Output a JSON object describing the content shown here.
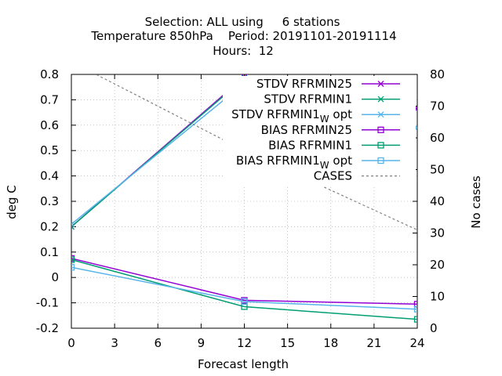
{
  "chart_data": {
    "type": "line",
    "title_lines": [
      "Selection: ALL using     6 stations",
      "Temperature 850hPa    Period: 20191101-20191114",
      "Hours:  12"
    ],
    "xlabel": "Forecast length",
    "ylabel": "deg C",
    "y2label": "No cases",
    "xlim": [
      0,
      24
    ],
    "ylim": [
      -0.2,
      0.8
    ],
    "y2lim": [
      0,
      80
    ],
    "x_ticks": [
      "0",
      "3",
      "6",
      "9",
      "12",
      "15",
      "18",
      "21",
      "24"
    ],
    "y_ticks": [
      "-0.2",
      "-0.1",
      "0",
      "0.1",
      "0.2",
      "0.3",
      "0.4",
      "0.5",
      "0.6",
      "0.7",
      "0.8"
    ],
    "y2_ticks": [
      "0",
      "10",
      "20",
      "30",
      "40",
      "50",
      "60",
      "70",
      "80"
    ],
    "grid": true,
    "legend_position": "top-right",
    "x": [
      0,
      12,
      24
    ],
    "series": [
      {
        "name": "STDV RFRMIN25",
        "color": "#9400d3",
        "marker": "x",
        "axis": "y",
        "values": [
          0.2,
          0.79,
          0.665
        ]
      },
      {
        "name": "STDV RFRMIN1",
        "color": "#009e73",
        "marker": "x",
        "axis": "y",
        "values": [
          0.2,
          0.785,
          0.59
        ]
      },
      {
        "name_main": "STDV RFRMIN1",
        "name_sub": "W",
        "name_tail": " opt",
        "color": "#56b4e9",
        "marker": "x",
        "axis": "y",
        "values": [
          0.21,
          0.765,
          0.59
        ]
      },
      {
        "name": "BIAS RFRMIN25",
        "color": "#9400d3",
        "marker": "square",
        "axis": "y",
        "values": [
          0.075,
          -0.09,
          -0.105
        ]
      },
      {
        "name": "BIAS RFRMIN1",
        "color": "#009e73",
        "marker": "square",
        "axis": "y",
        "values": [
          0.07,
          -0.115,
          -0.165
        ]
      },
      {
        "name_main": "BIAS RFRMIN1",
        "name_sub": "W",
        "name_tail": " opt",
        "color": "#56b4e9",
        "marker": "square",
        "axis": "y",
        "values": [
          0.04,
          -0.095,
          -0.125
        ]
      },
      {
        "name": "CASES",
        "color": "#808080",
        "marker": "none",
        "dashed": true,
        "axis": "y2",
        "values": [
          84,
          56,
          31
        ]
      }
    ]
  }
}
